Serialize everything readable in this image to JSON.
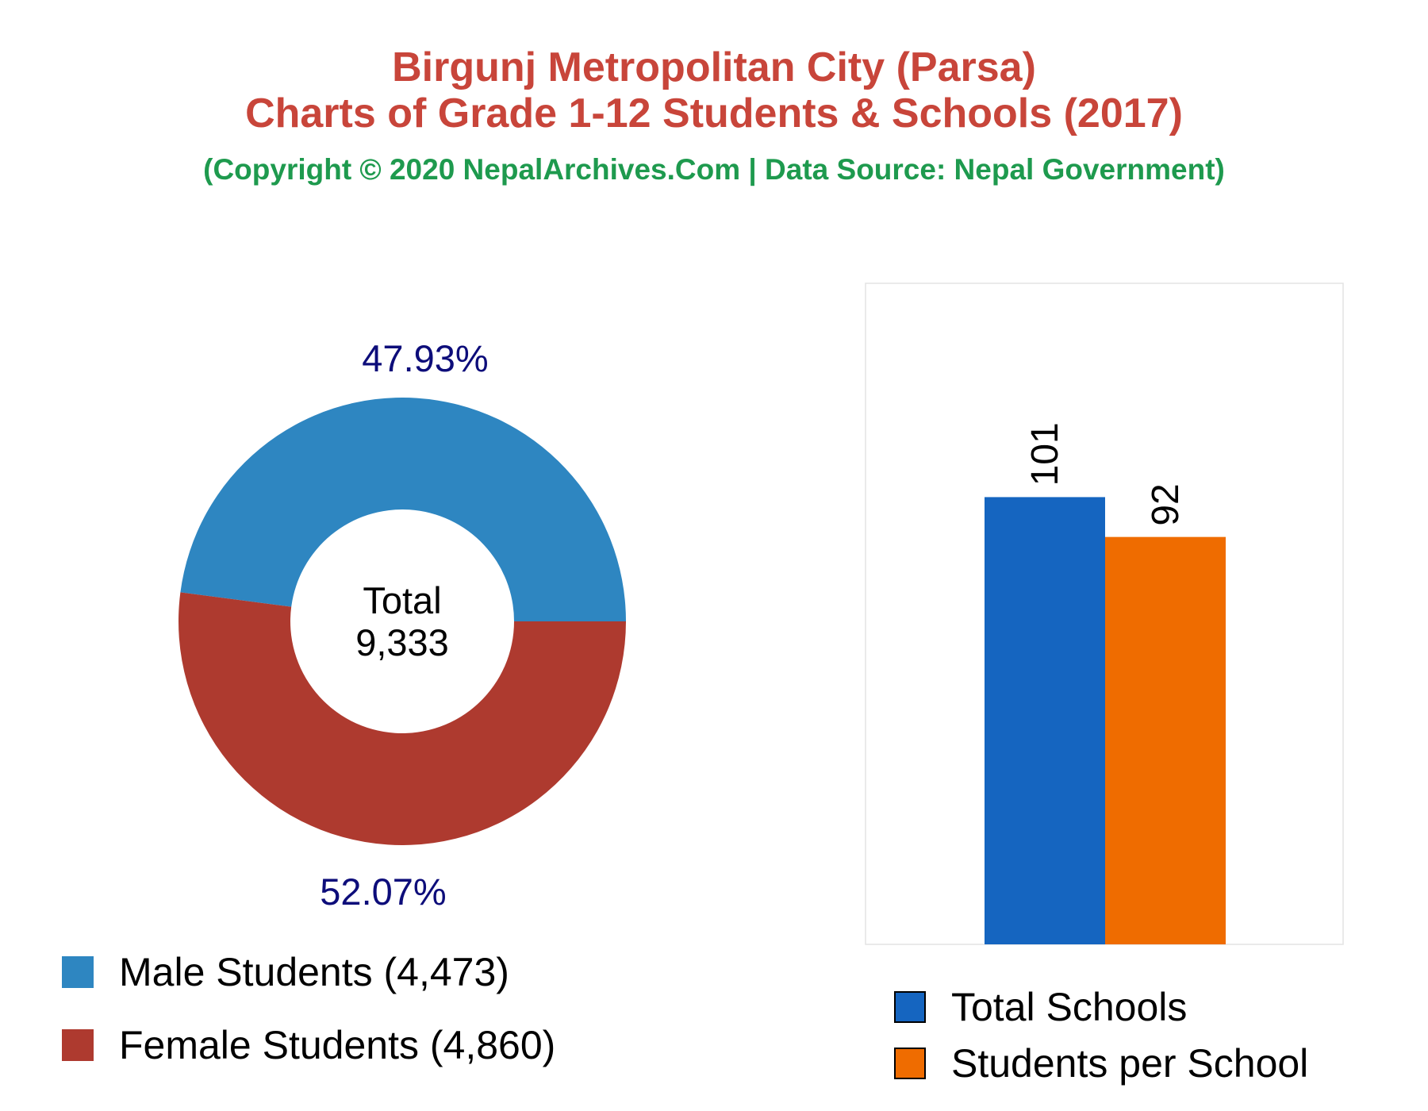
{
  "header": {
    "title_line1": "Birgunj Metropolitan City (Parsa)",
    "title_line2": "Charts of Grade 1-12 Students & Schools (2017)",
    "subtitle": "(Copyright © 2020 NepalArchives.Com | Data Source: Nepal Government)"
  },
  "colors": {
    "title": "#c8453a",
    "subtitle": "#1e9a4e",
    "male": "#2e86c1",
    "female": "#ae3a2f",
    "total_schools": "#1565c0",
    "students_per_school": "#ef6c00",
    "pct_label": "#0d0d7a"
  },
  "chart_data": [
    {
      "type": "pie",
      "style": "donut",
      "center_label": "Total",
      "center_value": "9,333",
      "slices": [
        {
          "name": "Male Students (4,473)",
          "value": 4473,
          "percent_label": "47.93%",
          "color": "#2e86c1"
        },
        {
          "name": "Female Students (4,860)",
          "value": 4860,
          "percent_label": "52.07%",
          "color": "#ae3a2f"
        }
      ],
      "legend_position": "bottom"
    },
    {
      "type": "bar",
      "categories": [
        "Total Schools",
        "Students per School"
      ],
      "values": [
        101,
        92
      ],
      "value_labels": [
        "101",
        "92"
      ],
      "colors": [
        "#1565c0",
        "#ef6c00"
      ],
      "legend_position": "bottom",
      "grid": false
    }
  ]
}
